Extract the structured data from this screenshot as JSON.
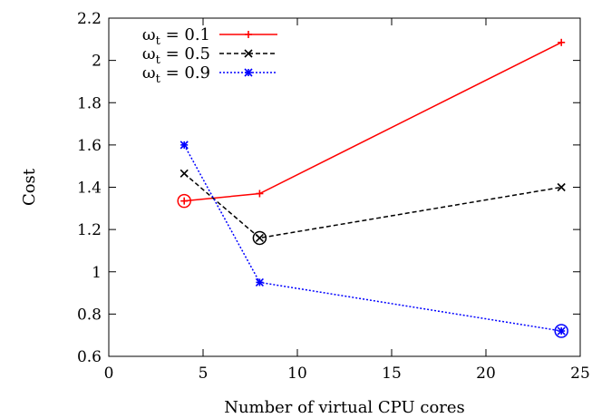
{
  "chart_data": {
    "type": "line",
    "xlabel": "Number of virtual CPU cores",
    "ylabel": "Cost",
    "xlim": [
      0,
      25
    ],
    "ylim": [
      0.6,
      2.2
    ],
    "xticks": [
      0,
      5,
      10,
      15,
      20,
      25
    ],
    "yticks": [
      0.6,
      0.8,
      1.0,
      1.2,
      1.4,
      1.6,
      1.8,
      2.0,
      2.2
    ],
    "ytick_labels": [
      "0.6",
      "0.8",
      "1",
      "1.2",
      "1.4",
      "1.6",
      "1.8",
      "2",
      "2.2"
    ],
    "x": [
      4,
      8,
      24
    ],
    "legend_position": "top-left",
    "series": [
      {
        "label_base": "ω",
        "label_sub": "t",
        "label_rest": " = 0.1",
        "values": [
          1.335,
          1.37,
          2.085
        ],
        "color": "#ff0000",
        "dash": "solid",
        "marker": "plus",
        "highlight_index": 0
      },
      {
        "label_base": "ω",
        "label_sub": "t",
        "label_rest": " = 0.5",
        "values": [
          1.465,
          1.16,
          1.4
        ],
        "color": "#000000",
        "dash": "dashed",
        "marker": "cross",
        "highlight_index": 1
      },
      {
        "label_base": "ω",
        "label_sub": "t",
        "label_rest": " = 0.9",
        "values": [
          1.6,
          0.95,
          0.72
        ],
        "color": "#0000ff",
        "dash": "dotted",
        "marker": "star",
        "highlight_index": 2
      }
    ]
  }
}
